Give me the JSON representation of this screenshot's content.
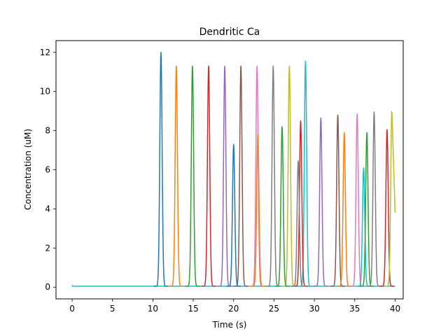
{
  "chart_data": {
    "type": "line",
    "title": "Dendritic Ca",
    "xlabel": "Time (s)",
    "ylabel": "Concentration (uM)",
    "xlim": [
      -2,
      41
    ],
    "ylim": [
      -0.6,
      12.6
    ],
    "xticks": [
      0,
      5,
      10,
      15,
      20,
      25,
      30,
      35,
      40
    ],
    "yticks": [
      0,
      2,
      4,
      6,
      8,
      10,
      12
    ],
    "grid": false,
    "legend": "none",
    "baseline": 0.05,
    "peak_halfwidth_s": 0.3,
    "peaks": [
      {
        "t": 11.0,
        "value": 12.0,
        "color": "#1f77b4"
      },
      {
        "t": 12.9,
        "value": 11.3,
        "color": "#ff7f0e"
      },
      {
        "t": 14.9,
        "value": 11.3,
        "color": "#2ca02c"
      },
      {
        "t": 16.9,
        "value": 11.3,
        "color": "#d62728"
      },
      {
        "t": 18.9,
        "value": 11.3,
        "color": "#9467bd"
      },
      {
        "t": 20.9,
        "value": 11.3,
        "color": "#8c564b"
      },
      {
        "t": 22.9,
        "value": 11.3,
        "color": "#e377c2"
      },
      {
        "t": 24.9,
        "value": 11.3,
        "color": "#7f7f7f"
      },
      {
        "t": 26.9,
        "value": 11.3,
        "color": "#bcbd22"
      },
      {
        "t": 28.9,
        "value": 11.55,
        "color": "#17becf"
      },
      {
        "t": 20.0,
        "value": 7.3,
        "color": "#1f77b4"
      },
      {
        "t": 23.0,
        "value": 7.8,
        "color": "#ff7f0e"
      },
      {
        "t": 26.0,
        "value": 8.2,
        "color": "#2ca02c"
      },
      {
        "t": 28.3,
        "value": 8.5,
        "color": "#d62728"
      },
      {
        "t": 30.8,
        "value": 8.65,
        "color": "#9467bd"
      },
      {
        "t": 32.9,
        "value": 8.8,
        "color": "#8c564b"
      },
      {
        "t": 35.3,
        "value": 8.85,
        "color": "#e377c2"
      },
      {
        "t": 28.0,
        "value": 6.45,
        "color": "#7f7f7f"
      },
      {
        "t": 33.7,
        "value": 7.9,
        "color": "#ff7f0e"
      },
      {
        "t": 36.1,
        "value": 6.1,
        "color": "#17becf"
      },
      {
        "t": 36.5,
        "value": 7.9,
        "color": "#2ca02c"
      },
      {
        "t": 37.4,
        "value": 8.95,
        "color": "#7f7f7f"
      },
      {
        "t": 39.0,
        "value": 8.05,
        "color": "#d62728"
      }
    ],
    "tail_series": {
      "color": "#bcbd22",
      "t_peak": 39.6,
      "peak": 9.05,
      "t_end": 40.0,
      "end_value": 3.8
    }
  }
}
